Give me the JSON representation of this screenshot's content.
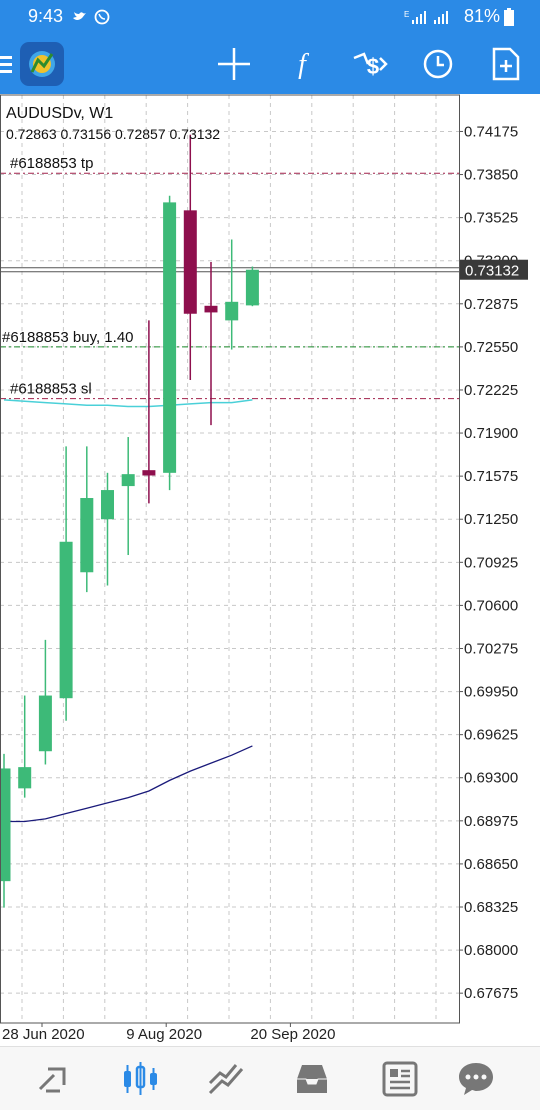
{
  "status": {
    "time": "9:43",
    "battery": "81%"
  },
  "toolbar": {
    "icons": [
      "menu-icon",
      "app-logo-icon",
      "crosshair-icon",
      "function-icon",
      "objects-icon",
      "timeframe-clock-icon",
      "new-order-icon"
    ]
  },
  "chart": {
    "symbol_label": "AUDUSDv, W1",
    "ohlc_label": "0.72863 0.73156 0.72857 0.73132",
    "current_price": "0.73132",
    "tp_label": "#6188853 tp",
    "buy_label": "#6188853 buy, 1.40",
    "sl_label": "#6188853 sl",
    "colors": {
      "bull": "#3dba78",
      "bear": "#8e0f4d",
      "grid": "#c8c8c8",
      "tp_sl": "#a0204a",
      "entry": "#1a8a2a",
      "ma_fast": "#4ad0d8",
      "ma_slow": "#1a1a7a",
      "price_tag": "#3a3a3a"
    }
  },
  "chart_data": {
    "type": "candlestick",
    "y_ticks": [
      "0.74175",
      "0.73850",
      "0.73525",
      "0.73200",
      "0.72875",
      "0.72550",
      "0.72225",
      "0.71900",
      "0.71575",
      "0.71250",
      "0.70925",
      "0.70600",
      "0.70275",
      "0.69950",
      "0.69625",
      "0.69300",
      "0.68975",
      "0.68650",
      "0.68325",
      "0.68000",
      "0.67675"
    ],
    "ylim": [
      0.6745,
      0.7445
    ],
    "x_labels": [
      "28 Jun 2020",
      "9 Aug 2020",
      "20 Sep 2020"
    ],
    "levels": {
      "tp": 0.7386,
      "entry": 0.7255,
      "sl": 0.7216
    },
    "candles": [
      {
        "o": 0.6852,
        "h": 0.6948,
        "l": 0.6832,
        "c": 0.6937
      },
      {
        "o": 0.6922,
        "h": 0.6992,
        "l": 0.6915,
        "c": 0.6938
      },
      {
        "o": 0.695,
        "h": 0.7034,
        "l": 0.694,
        "c": 0.6992
      },
      {
        "o": 0.699,
        "h": 0.718,
        "l": 0.6973,
        "c": 0.7108
      },
      {
        "o": 0.7085,
        "h": 0.718,
        "l": 0.707,
        "c": 0.7141
      },
      {
        "o": 0.7125,
        "h": 0.716,
        "l": 0.7075,
        "c": 0.7147
      },
      {
        "o": 0.715,
        "h": 0.7187,
        "l": 0.7098,
        "c": 0.7159
      },
      {
        "o": 0.7162,
        "h": 0.7275,
        "l": 0.7137,
        "c": 0.7158
      },
      {
        "o": 0.716,
        "h": 0.7369,
        "l": 0.7147,
        "c": 0.7364
      },
      {
        "o": 0.7358,
        "h": 0.7415,
        "l": 0.723,
        "c": 0.728
      },
      {
        "o": 0.7286,
        "h": 0.7319,
        "l": 0.7196,
        "c": 0.7281
      },
      {
        "o": 0.7275,
        "h": 0.7336,
        "l": 0.7253,
        "c": 0.7289
      },
      {
        "o": 0.72863,
        "h": 0.73156,
        "l": 0.72857,
        "c": 0.73132
      }
    ],
    "ma_fast": [
      0.7215,
      0.7214,
      0.7213,
      0.7212,
      0.7211,
      0.7211,
      0.721,
      0.721,
      0.7211,
      0.7212,
      0.7213,
      0.7213,
      0.7215
    ],
    "ma_slow": [
      0.6897,
      0.6897,
      0.6899,
      0.6903,
      0.6907,
      0.6911,
      0.6915,
      0.692,
      0.6928,
      0.6935,
      0.6941,
      0.6947,
      0.6954
    ]
  },
  "bottom_nav": {
    "items": [
      "quotes-icon",
      "chart-icon",
      "trade-icon",
      "history-icon",
      "news-icon",
      "chat-icon"
    ]
  }
}
